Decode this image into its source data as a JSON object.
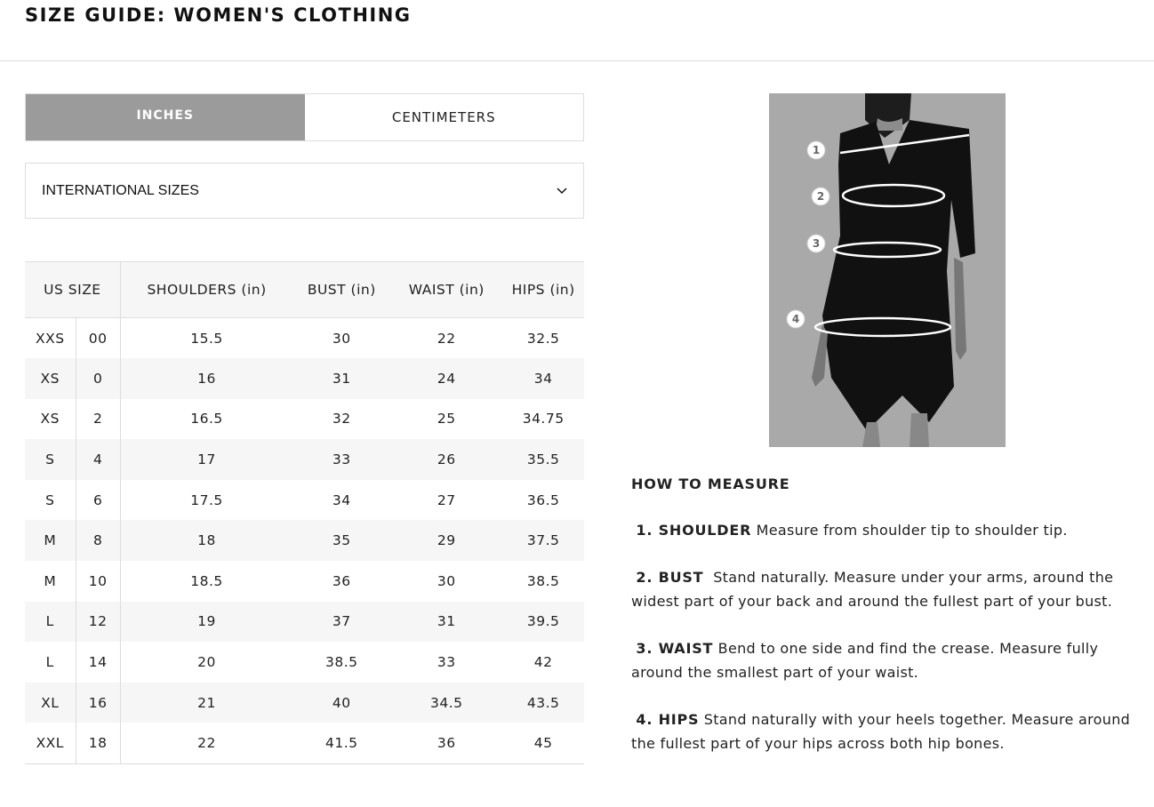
{
  "title": "SIZE GUIDE: WOMEN'S CLOTHING",
  "units": {
    "inches": "INCHES",
    "centimeters": "CENTIMETERS",
    "selected": "INCHES"
  },
  "size_select": {
    "value": "INTERNATIONAL SIZES",
    "icon": "chevron-down-icon"
  },
  "table": {
    "headers": [
      "US SIZE",
      "SHOULDERS (in)",
      "BUST (in)",
      "WAIST (in)",
      "HIPS (in)"
    ],
    "rows": [
      [
        "XXS",
        "00",
        "15.5",
        "30",
        "22",
        "32.5"
      ],
      [
        "XS",
        "0",
        "16",
        "31",
        "24",
        "34"
      ],
      [
        "XS",
        "2",
        "16.5",
        "32",
        "25",
        "34.75"
      ],
      [
        "S",
        "4",
        "17",
        "33",
        "26",
        "35.5"
      ],
      [
        "S",
        "6",
        "17.5",
        "34",
        "27",
        "36.5"
      ],
      [
        "M",
        "8",
        "18",
        "35",
        "29",
        "37.5"
      ],
      [
        "M",
        "10",
        "18.5",
        "36",
        "30",
        "38.5"
      ],
      [
        "L",
        "12",
        "19",
        "37",
        "31",
        "39.5"
      ],
      [
        "L",
        "14",
        "20",
        "38.5",
        "33",
        "42"
      ],
      [
        "XL",
        "16",
        "21",
        "40",
        "34.5",
        "43.5"
      ],
      [
        "XXL",
        "18",
        "22",
        "41.5",
        "36",
        "45"
      ]
    ]
  },
  "image": {
    "markers": [
      "1",
      "2",
      "3",
      "4"
    ]
  },
  "how_to": {
    "title": "HOW TO MEASURE",
    "items": [
      {
        "label": "1. SHOULDER",
        "text": "Measure from shoulder tip to shoulder tip."
      },
      {
        "label": "2. BUST",
        "text": "Stand naturally. Measure under your arms, around the widest part of your back and around the fullest part of your bust."
      },
      {
        "label": "3. WAIST",
        "text": "Bend to one side and find the crease. Measure fully around the smallest part of your waist."
      },
      {
        "label": "4. HIPS",
        "text": "Stand naturally with your heels together. Measure around the fullest part of your hips across both hip bones."
      }
    ]
  }
}
